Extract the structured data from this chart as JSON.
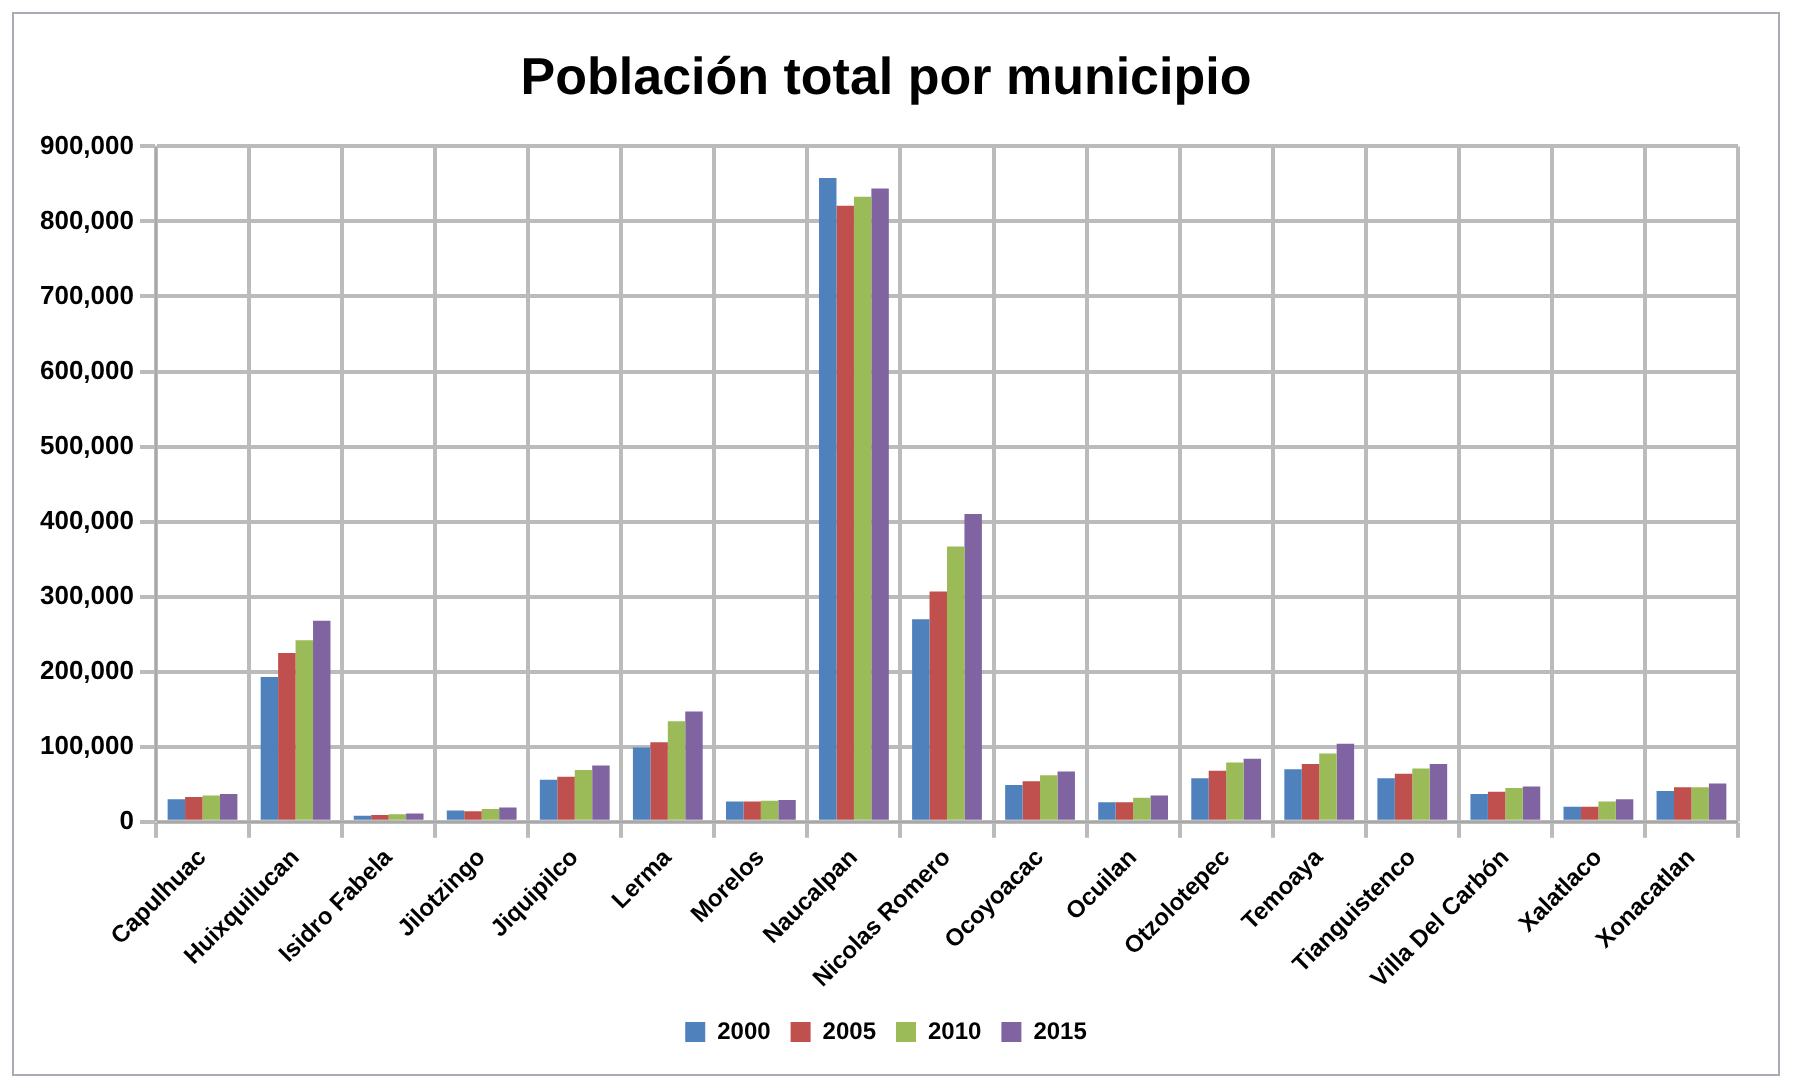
{
  "chart_data": {
    "type": "bar",
    "title": "Población total por municipio",
    "categories": [
      "Capulhuac",
      "Huixquilucan",
      "Isidro Fabela",
      "Jilotzingo",
      "Jiquipilco",
      "Lerma",
      "Morelos",
      "Naucalpan",
      "Nicolas Romero",
      "Ocoyoacac",
      "Ocuilan",
      "Otzolotepec",
      "Temoaya",
      "Tianguistenco",
      "Villa Del Carbón",
      "Xalatlaco",
      "Xonacatlan"
    ],
    "series": [
      {
        "name": "2000",
        "color": "#4f81bd",
        "values": [
          30000,
          193000,
          8000,
          15000,
          56000,
          99000,
          27000,
          858000,
          270000,
          49000,
          26000,
          58000,
          70000,
          58000,
          37000,
          20000,
          41000
        ]
      },
      {
        "name": "2005",
        "color": "#c0504d",
        "values": [
          33000,
          225000,
          9000,
          14000,
          60000,
          106000,
          27000,
          821000,
          307000,
          54000,
          26000,
          68000,
          77000,
          64000,
          40000,
          20000,
          46000
        ]
      },
      {
        "name": "2010",
        "color": "#9bbb59",
        "values": [
          35000,
          242000,
          10000,
          17000,
          69000,
          134000,
          28000,
          833000,
          367000,
          62000,
          32000,
          79000,
          91000,
          71000,
          45000,
          27000,
          46000
        ]
      },
      {
        "name": "2015",
        "color": "#8064a2",
        "values": [
          37000,
          268000,
          11000,
          19000,
          75000,
          147000,
          29000,
          844000,
          410000,
          67000,
          35000,
          84000,
          104000,
          77000,
          47000,
          30000,
          51000
        ]
      }
    ],
    "ylim": [
      0,
      900000
    ],
    "yticks": [
      {
        "value": 0,
        "label": "0"
      },
      {
        "value": 100000,
        "label": "100,000"
      },
      {
        "value": 200000,
        "label": "200,000"
      },
      {
        "value": 300000,
        "label": "300,000"
      },
      {
        "value": 400000,
        "label": "400,000"
      },
      {
        "value": 500000,
        "label": "500,000"
      },
      {
        "value": 600000,
        "label": "600,000"
      },
      {
        "value": 700000,
        "label": "700,000"
      },
      {
        "value": 800000,
        "label": "800,000"
      },
      {
        "value": 900000,
        "label": "900,000"
      }
    ],
    "grid": true,
    "legend": "bottom"
  }
}
